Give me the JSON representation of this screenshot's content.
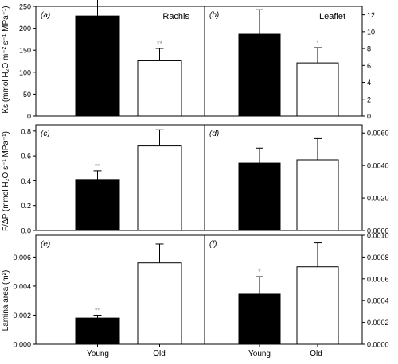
{
  "labels": {
    "ylabel_top": "Ks (mmol H₂O m⁻² s⁻¹ MPa⁻¹)",
    "ylabel_mid": "F/ΔP (mmol H₂O s⁻¹ MPa⁻¹)",
    "ylabel_bot": "Lamina area (m²)",
    "col_left": "Rachis",
    "col_right": "Leaflet",
    "x_young": "Young",
    "x_old": "Old"
  },
  "chart_data": [
    {
      "type": "bar",
      "panel": "(a)",
      "column": "Rachis",
      "categories": [
        "Young",
        "Old"
      ],
      "values": [
        228,
        126
      ],
      "errors": [
        42,
        28
      ],
      "significance": [
        "",
        "**"
      ],
      "ylim": [
        0,
        250
      ],
      "yticks": [
        "0",
        "50",
        "100",
        "150",
        "200",
        "250"
      ],
      "colors": [
        "#000000",
        "#ffffff"
      ]
    },
    {
      "type": "bar",
      "panel": "(b)",
      "column": "Leaflet",
      "categories": [
        "Young",
        "Old"
      ],
      "values": [
        9.7,
        6.3
      ],
      "errors": [
        2.9,
        1.8
      ],
      "significance": [
        "",
        "*"
      ],
      "ylim": [
        0,
        13
      ],
      "yticks": [
        "0",
        "2",
        "4",
        "6",
        "8",
        "10",
        "12"
      ],
      "colors": [
        "#000000",
        "#ffffff"
      ]
    },
    {
      "type": "bar",
      "panel": "(c)",
      "column": "Rachis",
      "categories": [
        "Young",
        "Old"
      ],
      "values": [
        0.41,
        0.68
      ],
      "errors": [
        0.07,
        0.13
      ],
      "significance": [
        "**",
        ""
      ],
      "ylim": [
        0,
        0.85
      ],
      "yticks": [
        "0.0",
        "0.2",
        "0.4",
        "0.6",
        "0.8"
      ],
      "colors": [
        "#000000",
        "#ffffff"
      ]
    },
    {
      "type": "bar",
      "panel": "(d)",
      "column": "Leaflet",
      "categories": [
        "Young",
        "Old"
      ],
      "values": [
        0.00415,
        0.00435
      ],
      "errors": [
        0.00092,
        0.0013
      ],
      "significance": [
        "",
        ""
      ],
      "ylim": [
        0,
        0.0065
      ],
      "yticks": [
        "0.0000",
        "0.0020",
        "0.0040",
        "0.0060"
      ],
      "colors": [
        "#000000",
        "#ffffff"
      ]
    },
    {
      "type": "bar",
      "panel": "(e)",
      "column": "Rachis",
      "categories": [
        "Young",
        "Old"
      ],
      "values": [
        0.0018,
        0.0056
      ],
      "errors": [
        0.0002,
        0.0013
      ],
      "significance": [
        "**",
        ""
      ],
      "ylim": [
        0,
        0.0075
      ],
      "yticks": [
        "0.000",
        "0.002",
        "0.004",
        "0.006"
      ],
      "colors": [
        "#000000",
        "#ffffff"
      ]
    },
    {
      "type": "bar",
      "panel": "(f)",
      "column": "Leaflet",
      "categories": [
        "Young",
        "Old"
      ],
      "values": [
        0.00046,
        0.00071
      ],
      "errors": [
        0.00016,
        0.00022
      ],
      "significance": [
        "*",
        ""
      ],
      "ylim": [
        0,
        0.001
      ],
      "yticks": [
        "0.0000",
        "0.0002",
        "0.0004",
        "0.0006",
        "0.0008",
        "0.0010"
      ],
      "colors": [
        "#000000",
        "#ffffff"
      ]
    }
  ]
}
